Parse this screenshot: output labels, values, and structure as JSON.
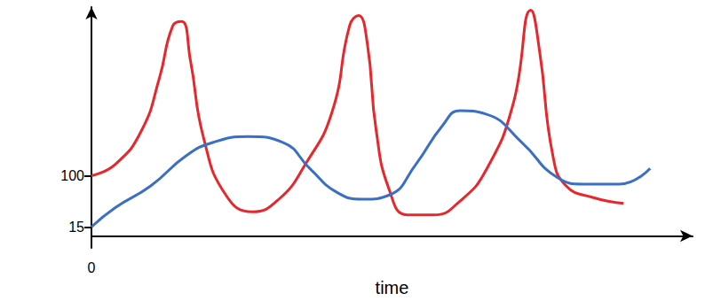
{
  "chart_data": {
    "type": "line",
    "xlabel": "time",
    "xlim": [
      0,
      680
    ],
    "xticks": [
      0
    ],
    "ylim": [
      -20,
      380
    ],
    "yticks": [
      15,
      100
    ],
    "grid": false,
    "series": [
      {
        "color": "#e8262b",
        "x": [
          0,
          27,
          57,
          77,
          92,
          102,
          112,
          127,
          152,
          182,
          212,
          242,
          272,
          292,
          302,
          312,
          322,
          337,
          357,
          387,
          417,
          447,
          477,
          497,
          507,
          522,
          537,
          567,
          602
        ],
        "values": [
          100,
          119,
          176,
          263,
          349,
          356,
          291,
          162,
          68,
          40,
          61,
          119,
          205,
          349,
          366,
          320,
          176,
          76,
          35,
          35,
          58,
          111,
          219,
          375,
          306,
          133,
          83,
          64,
          54
        ]
      },
      {
        "color": "#3a6fc4",
        "x": [
          0,
          27,
          67,
          107,
          137,
          177,
          217,
          247,
          277,
          307,
          337,
          367,
          397,
          417,
          447,
          487,
          527,
          557,
          597,
          632
        ],
        "values": [
          15,
          47,
          83,
          133,
          155,
          165,
          155,
          112,
          73,
          61,
          68,
          119,
          183,
          208,
          202,
          155,
          97,
          86,
          86,
          112
        ]
      }
    ]
  }
}
